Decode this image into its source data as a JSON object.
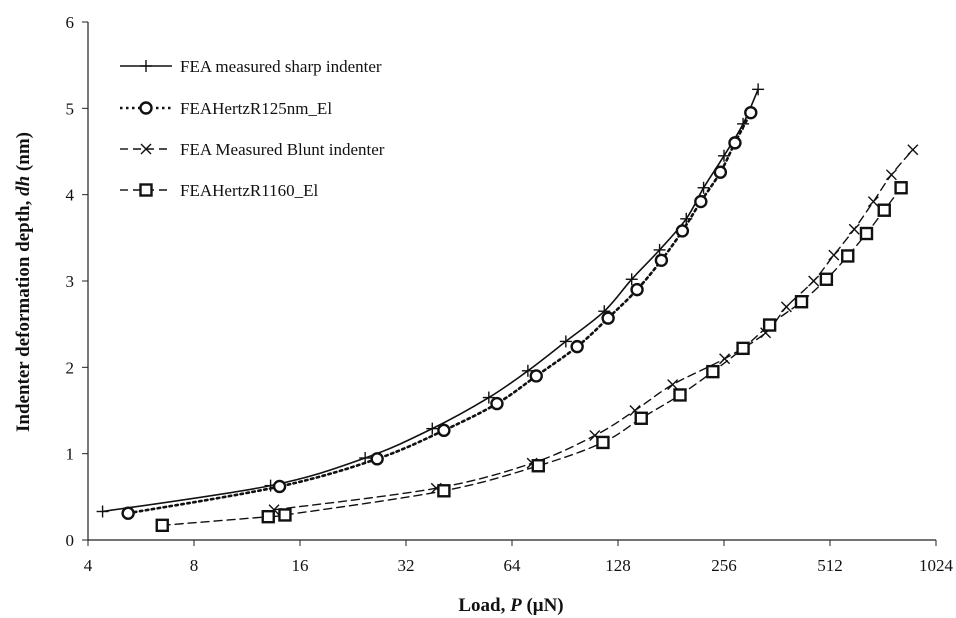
{
  "chart_data": {
    "type": "line",
    "xscale": "log2",
    "xlabel_main": "Load, ",
    "xlabel_var": "P",
    "xlabel_unit": " (μN)",
    "ylabel_main": "Indenter deformation depth, ",
    "ylabel_var": "dh",
    "ylabel_unit": " (nm)",
    "xlim": [
      4,
      1024
    ],
    "ylim": [
      0,
      6
    ],
    "xticks": [
      4,
      8,
      16,
      32,
      64,
      128,
      256,
      512,
      1024
    ],
    "yticks": [
      0,
      1,
      2,
      3,
      4,
      5,
      6
    ],
    "grid": false,
    "legend_position": "top-left",
    "series": [
      {
        "name": "FEA measured sharp indenter",
        "marker": "plus",
        "line": "solid",
        "points": [
          [
            4.4,
            0.33
          ],
          [
            13.2,
            0.63
          ],
          [
            24.5,
            0.95
          ],
          [
            38,
            1.29
          ],
          [
            55,
            1.65
          ],
          [
            71,
            1.96
          ],
          [
            91,
            2.3
          ],
          [
            117,
            2.65
          ],
          [
            140,
            3.02
          ],
          [
            168,
            3.36
          ],
          [
            200,
            3.72
          ],
          [
            224,
            4.08
          ],
          [
            256,
            4.45
          ],
          [
            290,
            4.82
          ],
          [
            320,
            5.22
          ]
        ]
      },
      {
        "name": "FEAHertzR125nm_El",
        "marker": "circle",
        "line": "dotted",
        "points": [
          [
            5.2,
            0.31
          ],
          [
            14,
            0.62
          ],
          [
            26.5,
            0.94
          ],
          [
            41,
            1.27
          ],
          [
            58,
            1.58
          ],
          [
            75,
            1.9
          ],
          [
            98,
            2.24
          ],
          [
            120,
            2.57
          ],
          [
            145,
            2.9
          ],
          [
            170,
            3.24
          ],
          [
            195,
            3.58
          ],
          [
            220,
            3.92
          ],
          [
            250,
            4.26
          ],
          [
            275,
            4.6
          ],
          [
            305,
            4.95
          ]
        ]
      },
      {
        "name": "FEA Measured Blunt indenter",
        "marker": "x",
        "line": "dashed",
        "points": [
          [
            13.5,
            0.35
          ],
          [
            39,
            0.6
          ],
          [
            73,
            0.89
          ],
          [
            110,
            1.21
          ],
          [
            143,
            1.5
          ],
          [
            183,
            1.8
          ],
          [
            257,
            2.1
          ],
          [
            336,
            2.4
          ],
          [
            385,
            2.7
          ],
          [
            460,
            3.0
          ],
          [
            525,
            3.3
          ],
          [
            600,
            3.6
          ],
          [
            680,
            3.92
          ],
          [
            765,
            4.23
          ],
          [
            880,
            4.52
          ]
        ]
      },
      {
        "name": "FEAHertzR1160_El",
        "marker": "square",
        "line": "dashed",
        "points": [
          [
            6.5,
            0.17
          ],
          [
            13,
            0.27
          ],
          [
            14.5,
            0.29
          ],
          [
            41,
            0.57
          ],
          [
            76,
            0.86
          ],
          [
            116,
            1.13
          ],
          [
            149,
            1.41
          ],
          [
            192,
            1.68
          ],
          [
            238,
            1.95
          ],
          [
            290,
            2.22
          ],
          [
            345,
            2.49
          ],
          [
            425,
            2.76
          ],
          [
            500,
            3.02
          ],
          [
            575,
            3.29
          ],
          [
            650,
            3.55
          ],
          [
            730,
            3.82
          ],
          [
            815,
            4.08
          ]
        ]
      }
    ]
  }
}
